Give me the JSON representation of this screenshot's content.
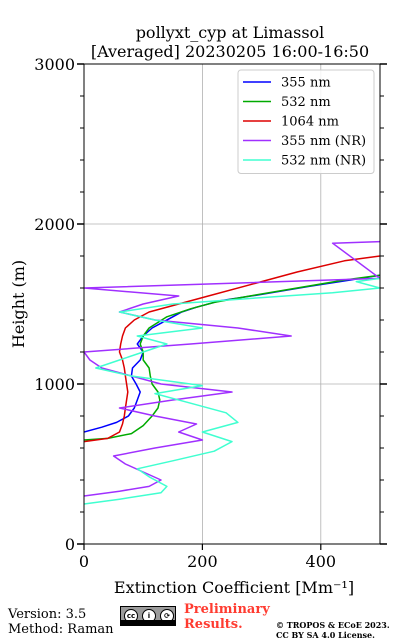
{
  "chart_data": {
    "type": "line",
    "title": [
      "pollyxt_cyp at Limassol",
      "[Averaged] 20230205 16:00-16:50"
    ],
    "xlabel": "Extinction Coefficient [Mm⁻¹]",
    "ylabel": "Height (m)",
    "xlim": [
      0,
      500
    ],
    "ylim": [
      0,
      3000
    ],
    "xticks": [
      0,
      200,
      400
    ],
    "yticks": [
      0,
      1000,
      2000,
      3000
    ],
    "grid": true,
    "legend_position": "top-right",
    "series": [
      {
        "name": "355 nm",
        "color": "#0000ff",
        "points": [
          [
            0,
            700
          ],
          [
            30,
            730
          ],
          [
            55,
            760
          ],
          [
            75,
            800
          ],
          [
            85,
            850
          ],
          [
            90,
            900
          ],
          [
            95,
            950
          ],
          [
            88,
            1000
          ],
          [
            80,
            1050
          ],
          [
            82,
            1100
          ],
          [
            95,
            1150
          ],
          [
            100,
            1200
          ],
          [
            90,
            1250
          ],
          [
            100,
            1300
          ],
          [
            115,
            1350
          ],
          [
            130,
            1380
          ],
          [
            150,
            1420
          ],
          [
            165,
            1450
          ],
          [
            190,
            1480
          ],
          [
            230,
            1520
          ],
          [
            300,
            1560
          ],
          [
            380,
            1610
          ],
          [
            450,
            1650
          ],
          [
            500,
            1680
          ]
        ]
      },
      {
        "name": "532 nm",
        "color": "#00aa00",
        "points": [
          [
            0,
            650
          ],
          [
            40,
            660
          ],
          [
            80,
            690
          ],
          [
            100,
            740
          ],
          [
            115,
            800
          ],
          [
            125,
            850
          ],
          [
            128,
            900
          ],
          [
            125,
            950
          ],
          [
            115,
            1000
          ],
          [
            112,
            1050
          ],
          [
            110,
            1100
          ],
          [
            100,
            1150
          ],
          [
            100,
            1200
          ],
          [
            95,
            1250
          ],
          [
            100,
            1300
          ],
          [
            110,
            1350
          ],
          [
            140,
            1420
          ],
          [
            180,
            1470
          ],
          [
            220,
            1510
          ],
          [
            280,
            1550
          ],
          [
            360,
            1600
          ],
          [
            440,
            1650
          ],
          [
            500,
            1680
          ]
        ]
      },
      {
        "name": "1064 nm",
        "color": "#dd0000",
        "points": [
          [
            0,
            640
          ],
          [
            40,
            660
          ],
          [
            60,
            700
          ],
          [
            65,
            750
          ],
          [
            68,
            800
          ],
          [
            70,
            850
          ],
          [
            72,
            900
          ],
          [
            74,
            950
          ],
          [
            72,
            1000
          ],
          [
            70,
            1050
          ],
          [
            68,
            1100
          ],
          [
            65,
            1150
          ],
          [
            60,
            1200
          ],
          [
            62,
            1250
          ],
          [
            65,
            1300
          ],
          [
            70,
            1350
          ],
          [
            85,
            1400
          ],
          [
            110,
            1450
          ],
          [
            160,
            1500
          ],
          [
            210,
            1550
          ],
          [
            280,
            1620
          ],
          [
            360,
            1700
          ],
          [
            440,
            1770
          ],
          [
            500,
            1800
          ]
        ]
      },
      {
        "name": "355 nm (NR)",
        "color": "#a030ff",
        "points": [
          [
            0,
            300
          ],
          [
            60,
            330
          ],
          [
            110,
            360
          ],
          [
            130,
            400
          ],
          [
            100,
            450
          ],
          [
            70,
            500
          ],
          [
            50,
            550
          ],
          [
            120,
            600
          ],
          [
            200,
            650
          ],
          [
            160,
            700
          ],
          [
            190,
            750
          ],
          [
            120,
            800
          ],
          [
            60,
            850
          ],
          [
            150,
            900
          ],
          [
            250,
            950
          ],
          [
            130,
            1000
          ],
          [
            80,
            1050
          ],
          [
            30,
            1100
          ],
          [
            10,
            1150
          ],
          [
            0,
            1200
          ],
          [
            180,
            1250
          ],
          [
            350,
            1300
          ],
          [
            260,
            1350
          ],
          [
            120,
            1400
          ],
          [
            60,
            1450
          ],
          [
            100,
            1500
          ],
          [
            160,
            1550
          ],
          [
            0,
            1600
          ],
          [
            500,
            1660
          ],
          [
            420,
            1880
          ],
          [
            500,
            1890
          ]
        ]
      },
      {
        "name": "532 nm (NR)",
        "color": "#40ffd0",
        "points": [
          [
            0,
            250
          ],
          [
            60,
            280
          ],
          [
            130,
            320
          ],
          [
            140,
            360
          ],
          [
            110,
            420
          ],
          [
            90,
            470
          ],
          [
            150,
            520
          ],
          [
            220,
            580
          ],
          [
            250,
            640
          ],
          [
            200,
            700
          ],
          [
            260,
            760
          ],
          [
            240,
            820
          ],
          [
            180,
            880
          ],
          [
            120,
            940
          ],
          [
            200,
            990
          ],
          [
            80,
            1050
          ],
          [
            20,
            1100
          ],
          [
            60,
            1150
          ],
          [
            100,
            1200
          ],
          [
            140,
            1250
          ],
          [
            90,
            1300
          ],
          [
            200,
            1350
          ],
          [
            120,
            1400
          ],
          [
            60,
            1450
          ],
          [
            150,
            1500
          ],
          [
            300,
            1540
          ],
          [
            420,
            1570
          ],
          [
            500,
            1600
          ],
          [
            460,
            1640
          ],
          [
            500,
            1660
          ]
        ]
      }
    ]
  },
  "footer": {
    "version": "Version: 3.5",
    "method": "Method: Raman",
    "cc_label": "cc BY SA",
    "preliminary": [
      "Preliminary",
      "Results."
    ],
    "copyright": [
      "© TROPOS & ECoE 2023.",
      "CC BY SA 4.0 License."
    ]
  }
}
